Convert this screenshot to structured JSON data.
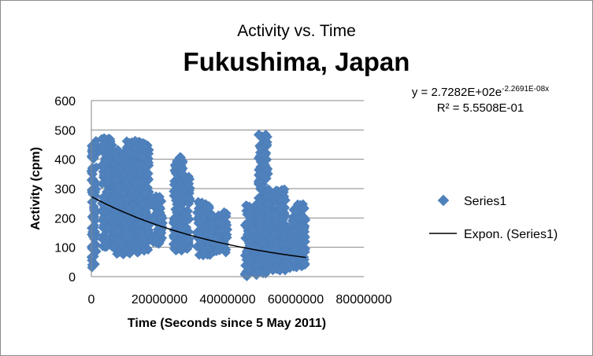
{
  "chart_data": {
    "type": "scatter",
    "title": "Activity vs. Time",
    "subtitle": "Fukushima, Japan",
    "xlabel": "Time (Seconds since 5 May 2011)",
    "ylabel": "Activity (cpm)",
    "xlim": [
      0,
      80000000
    ],
    "ylim": [
      0,
      600
    ],
    "x_ticks": [
      "0",
      "20000000",
      "40000000",
      "60000000",
      "80000000"
    ],
    "y_ticks": [
      "0",
      "100",
      "200",
      "300",
      "400",
      "500",
      "600"
    ],
    "grid": "horizontal",
    "legend_position": "right",
    "series": [
      {
        "name": "Series1",
        "marker": "diamond",
        "color": "#4f81bd",
        "clusters": [
          {
            "x_range": [
              0,
              1500000
            ],
            "y_range": [
              20,
              465
            ]
          },
          {
            "x_range": [
              3000000,
              6500000
            ],
            "y_range": [
              100,
              475
            ]
          },
          {
            "x_range": [
              6500000,
              12000000
            ],
            "y_range": [
              75,
              440
            ]
          },
          {
            "x_range": [
              10000000,
              15000000
            ],
            "y_range": [
              90,
              465
            ]
          },
          {
            "x_range": [
              13000000,
              17000000
            ],
            "y_range": [
              80,
              455
            ]
          },
          {
            "x_range": [
              18000000,
              21000000
            ],
            "y_range": [
              110,
              275
            ]
          },
          {
            "x_range": [
              24000000,
              27000000
            ],
            "y_range": [
              85,
              410
            ]
          },
          {
            "x_range": [
              26000000,
              29000000
            ],
            "y_range": [
              90,
              355
            ]
          },
          {
            "x_range": [
              31000000,
              35000000
            ],
            "y_range": [
              70,
              255
            ]
          },
          {
            "x_range": [
              35000000,
              40000000
            ],
            "y_range": [
              80,
              220
            ]
          },
          {
            "x_range": [
              45000000,
              49000000
            ],
            "y_range": [
              0,
              245
            ]
          },
          {
            "x_range": [
              49000000,
              52000000
            ],
            "y_range": [
              10,
              485
            ]
          },
          {
            "x_range": [
              51000000,
              57000000
            ],
            "y_range": [
              20,
              300
            ]
          },
          {
            "x_range": [
              56000000,
              60000000
            ],
            "y_range": [
              25,
              175
            ]
          },
          {
            "x_range": [
              59000000,
              63000000
            ],
            "y_range": [
              30,
              250
            ]
          }
        ]
      }
    ],
    "trendline": {
      "name": "Expon. (Series1)",
      "type": "exponential",
      "a": 272.82,
      "b": -2.2691e-08,
      "x_range": [
        0,
        63000000
      ],
      "color": "#000000"
    },
    "equation": {
      "line1_prefix": "y = 2.7282E+02e",
      "line1_exponent": "-2.2691E-08x",
      "line2": "R² = 5.5508E-01"
    }
  }
}
